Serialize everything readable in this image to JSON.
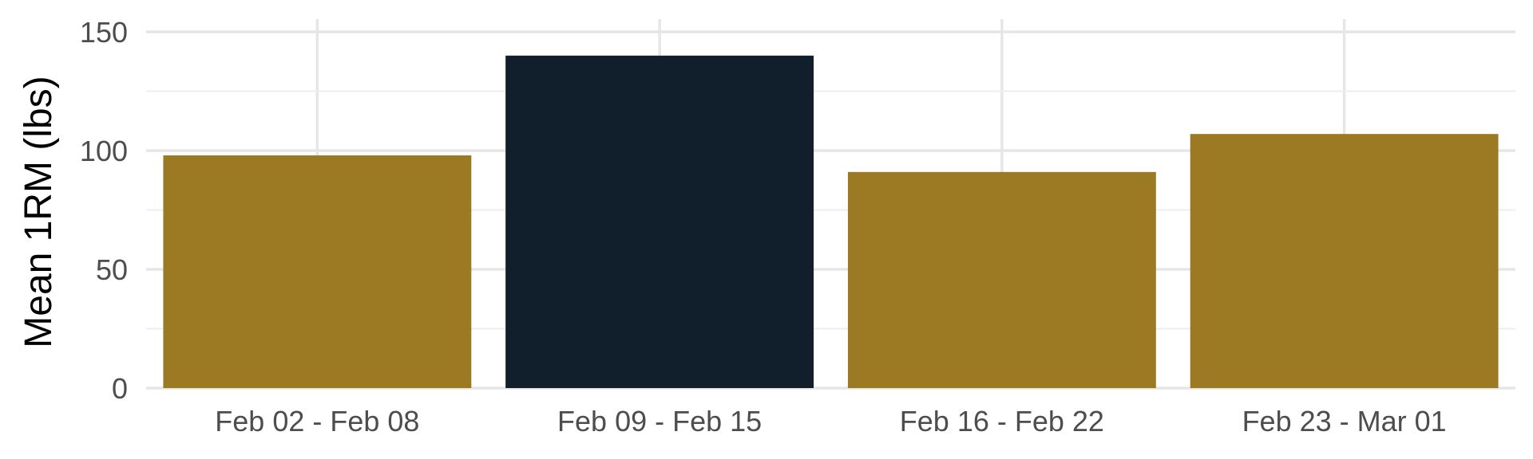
{
  "chart_data": {
    "type": "bar",
    "title": "",
    "xlabel": "",
    "ylabel": "Mean 1RM (lbs)",
    "categories": [
      "Feb 02 - Feb 08",
      "Feb 09 - Feb 15",
      "Feb 16 - Feb 22",
      "Feb 23 - Mar 01"
    ],
    "values": [
      98,
      140,
      91,
      107
    ],
    "bar_colors": [
      "#9c7a23",
      "#111e2b",
      "#9c7a23",
      "#9c7a23"
    ],
    "ylim": [
      0,
      150
    ],
    "yticks": [
      0,
      50,
      100,
      150
    ],
    "grid": true,
    "legend": "none"
  }
}
